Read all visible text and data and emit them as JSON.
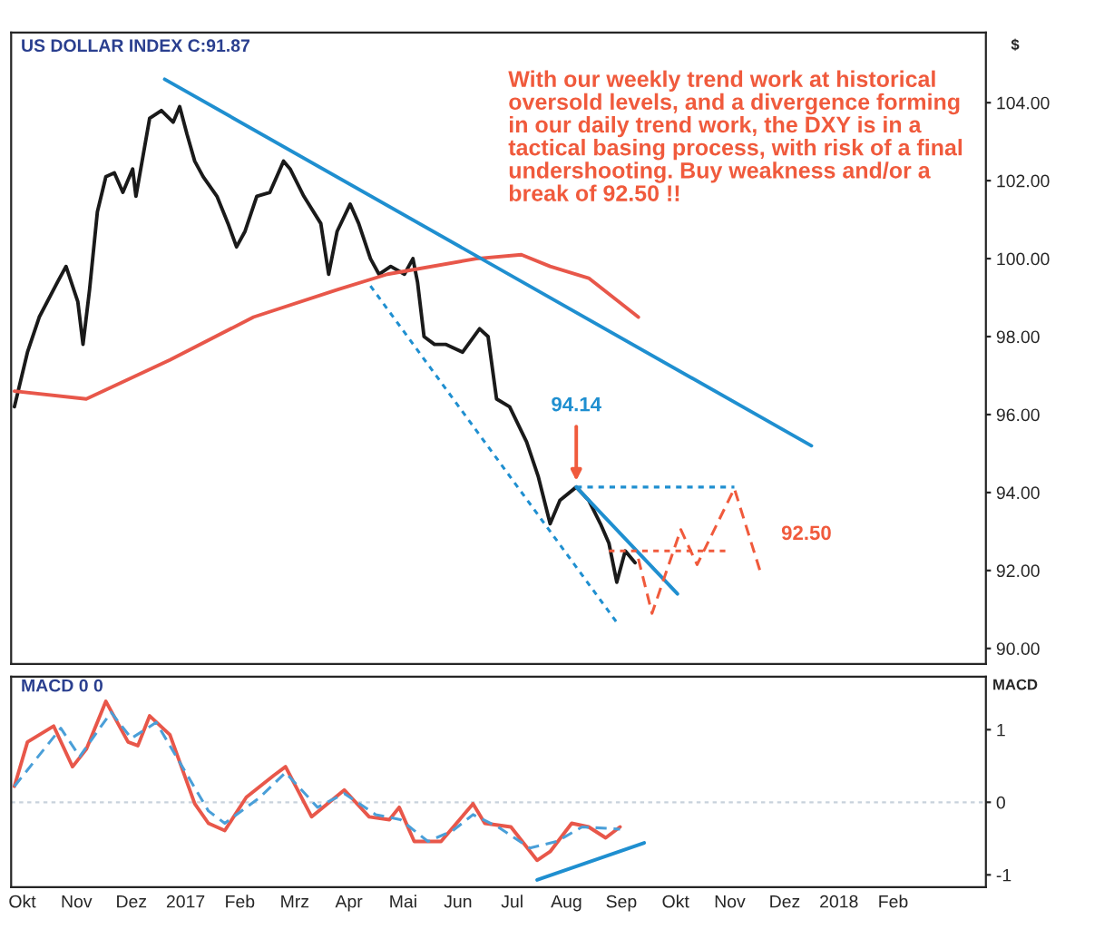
{
  "chart_data": [
    {
      "type": "line",
      "ylabel": "$",
      "xlim": [
        2016.733,
        2018.225
      ],
      "ylim": [
        89.6,
        105.8
      ],
      "tick_labels": "y",
      "grid": false,
      "legend": false,
      "yticks": [
        {
          "value": 90,
          "label": "90.00"
        },
        {
          "value": 92,
          "label": "92.00"
        },
        {
          "value": 94,
          "label": "94.00"
        },
        {
          "value": 96,
          "label": "96.00"
        },
        {
          "value": 98,
          "label": "98.00"
        },
        {
          "value": 100,
          "label": "100.00"
        },
        {
          "value": 102,
          "label": "102.00"
        },
        {
          "value": 104,
          "label": "104.00"
        }
      ],
      "annotations": [
        "US DOLLAR INDEX C:91.87",
        "With our weekly trend work at historical oversold levels, and a divergence forming in our daily trend work, the DXY is in a tactical basing process, with risk of a final undershooting. Buy weakness and/or a break of 92.50 !!",
        "92.50",
        {
          "text": "94.14",
          "x": 2017.598,
          "y": 94.3
        }
      ],
      "series": [
        {
          "color": "#1a1a1a",
          "line_style": "solid",
          "x": [
            2016.738,
            2016.758,
            2016.776,
            2016.804,
            2016.817,
            2016.835,
            2016.843,
            2016.853,
            2016.865,
            2016.878,
            2016.891,
            2016.904,
            2016.919,
            2016.924,
            2016.945,
            2016.963,
            2016.981,
            2016.991,
            2017.002,
            2017.014,
            2017.027,
            2017.048,
            2017.065,
            2017.078,
            2017.091,
            2017.109,
            2017.129,
            2017.15,
            2017.16,
            2017.181,
            2017.207,
            2017.219,
            2017.232,
            2017.252,
            2017.265,
            2017.283,
            2017.296,
            2017.314,
            2017.335,
            2017.348,
            2017.355,
            2017.365,
            2017.381,
            2017.398,
            2017.424,
            2017.45,
            2017.463,
            2017.476,
            2017.496,
            2017.522,
            2017.54,
            2017.558,
            2017.573,
            2017.598,
            2017.617,
            2017.635,
            2017.648,
            2017.66,
            2017.673,
            2017.688
          ],
          "values": [
            96.2,
            97.6,
            98.5,
            99.4,
            99.8,
            98.9,
            97.8,
            99.2,
            101.2,
            102.1,
            102.2,
            101.7,
            102.3,
            101.6,
            103.6,
            103.8,
            103.5,
            103.9,
            103.2,
            102.5,
            102.1,
            101.6,
            100.9,
            100.3,
            100.7,
            101.6,
            101.7,
            102.5,
            102.3,
            101.6,
            100.9,
            99.6,
            100.7,
            101.4,
            100.9,
            100.0,
            99.6,
            99.8,
            99.6,
            100.0,
            99.4,
            98.0,
            97.8,
            97.8,
            97.6,
            98.2,
            98.0,
            96.4,
            96.2,
            95.3,
            94.4,
            93.2,
            93.8,
            94.14,
            93.8,
            93.2,
            92.7,
            91.7,
            92.5,
            92.2
          ]
        },
        {
          "color": "#e8574a",
          "line_style": "solid",
          "x": [
            2016.738,
            2016.848,
            2016.976,
            2017.104,
            2017.232,
            2017.309,
            2017.445,
            2017.514,
            2017.558,
            2017.617,
            2017.693
          ],
          "values": [
            96.6,
            96.4,
            97.4,
            98.5,
            99.2,
            99.6,
            100.0,
            100.1,
            99.8,
            99.5,
            98.5
          ]
        },
        {
          "color": "#1f8fd0",
          "line_style": "solid",
          "x": [
            2016.968,
            2017.958
          ],
          "values": [
            104.6,
            95.2
          ]
        },
        {
          "color": "#1f8fd0",
          "line_style": "dotted",
          "x": [
            2017.283,
            2017.663
          ],
          "values": [
            99.3,
            90.6
          ]
        },
        {
          "color": "#1f8fd0",
          "line_style": "solid",
          "x": [
            2017.598,
            2017.753
          ],
          "values": [
            94.14,
            91.4
          ]
        },
        {
          "color": "#1f8fd0",
          "line_style": "dotted",
          "x": [
            2017.598,
            2017.84
          ],
          "values": [
            94.14,
            94.14
          ]
        },
        {
          "color": "#f05a3c",
          "line_style": "dotted",
          "x": [
            2017.648,
            2017.827
          ],
          "values": [
            92.5,
            92.5
          ]
        },
        {
          "color": "#f05a3c",
          "line_style": "dashed",
          "x": [
            2017.693,
            2017.714,
            2017.758,
            2017.783,
            2017.84,
            2017.881
          ],
          "values": [
            92.3,
            90.9,
            93.05,
            92.15,
            94.1,
            91.9
          ]
        }
      ]
    },
    {
      "type": "line",
      "ylabel": "MACD",
      "xlim": [
        2016.733,
        2018.225
      ],
      "ylim": [
        -1.17,
        1.73
      ],
      "grid": false,
      "legend": false,
      "yticks": [
        -1,
        0,
        1
      ],
      "xticks": [
        {
          "value": 2016.75,
          "label": "Okt"
        },
        {
          "value": 2016.833,
          "label": "Nov"
        },
        {
          "value": 2016.917,
          "label": "Dez"
        },
        2017,
        {
          "value": 2017.083,
          "label": "Feb"
        },
        {
          "value": 2017.167,
          "label": "Mrz"
        },
        {
          "value": 2017.25,
          "label": "Apr"
        },
        {
          "value": 2017.333,
          "label": "Mai"
        },
        {
          "value": 2017.417,
          "label": "Jun"
        },
        {
          "value": 2017.5,
          "label": "Jul"
        },
        {
          "value": 2017.583,
          "label": "Aug"
        },
        {
          "value": 2017.667,
          "label": "Sep"
        },
        {
          "value": 2017.75,
          "label": "Okt"
        },
        {
          "value": 2017.833,
          "label": "Nov"
        },
        {
          "value": 2017.917,
          "label": "Dez"
        },
        2018,
        {
          "value": 2018.083,
          "label": "Feb"
        }
      ],
      "annotations": [
        "MACD 0 0"
      ],
      "ref_lines": [
        {
          "axis": "y",
          "value": 0,
          "color": "#c8d2dc",
          "line_style": "dotted"
        }
      ],
      "series": [
        {
          "color": "#e8574a",
          "line_style": "solid",
          "x": [
            2016.738,
            2016.758,
            2016.798,
            2016.827,
            2016.848,
            2016.878,
            2016.912,
            2016.927,
            2016.945,
            2016.976,
            2017.014,
            2017.035,
            2017.06,
            2017.093,
            2017.135,
            2017.153,
            2017.193,
            2017.243,
            2017.281,
            2017.312,
            2017.327,
            2017.35,
            2017.391,
            2017.44,
            2017.458,
            2017.498,
            2017.538,
            2017.558,
            2017.591,
            2017.617,
            2017.643,
            2017.665
          ],
          "values": [
            0.22,
            0.83,
            1.05,
            0.49,
            0.73,
            1.39,
            0.83,
            0.78,
            1.19,
            0.93,
            -0.02,
            -0.29,
            -0.39,
            0.07,
            0.37,
            0.49,
            -0.2,
            0.17,
            -0.2,
            -0.24,
            -0.07,
            -0.54,
            -0.54,
            -0.02,
            -0.29,
            -0.34,
            -0.8,
            -0.68,
            -0.29,
            -0.34,
            -0.49,
            -0.34
          ]
        },
        {
          "color": "#4a9fd8",
          "line_style": "dashed",
          "x": [
            2016.738,
            2016.809,
            2016.838,
            2016.886,
            2016.917,
            2016.955,
            2017.035,
            2017.06,
            2017.114,
            2017.153,
            2017.202,
            2017.243,
            2017.291,
            2017.329,
            2017.371,
            2017.409,
            2017.44,
            2017.478,
            2017.527,
            2017.568,
            2017.607,
            2017.665
          ],
          "values": [
            0.22,
            1.02,
            0.63,
            1.24,
            0.88,
            1.1,
            -0.12,
            -0.29,
            0.07,
            0.41,
            -0.07,
            0.12,
            -0.17,
            -0.24,
            -0.54,
            -0.39,
            -0.17,
            -0.34,
            -0.63,
            -0.54,
            -0.34,
            -0.37
          ]
        },
        {
          "color": "#1f8fd0",
          "line_style": "solid",
          "x": [
            2017.538,
            2017.702
          ],
          "values": [
            -1.07,
            -0.56
          ]
        }
      ]
    }
  ]
}
